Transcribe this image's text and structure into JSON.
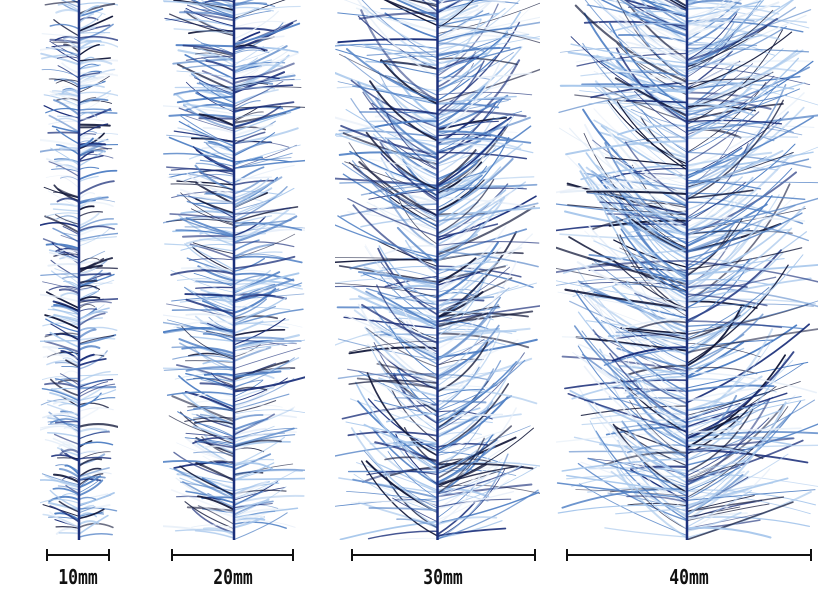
{
  "colors": {
    "background": "#ffffff",
    "core": "#1b2f7a",
    "fiber_light": "#a9c8ec",
    "fiber_mid": "#4f7fc4",
    "fiber_dark": "#12183a",
    "fiber_white": "#e6eef8",
    "scale": "#111111"
  },
  "samples": [
    {
      "label": "10mm",
      "fiber_length": 10
    },
    {
      "label": "20mm",
      "fiber_length": 20
    },
    {
      "label": "30mm",
      "fiber_length": 30
    },
    {
      "label": "40mm",
      "fiber_length": 40
    }
  ]
}
